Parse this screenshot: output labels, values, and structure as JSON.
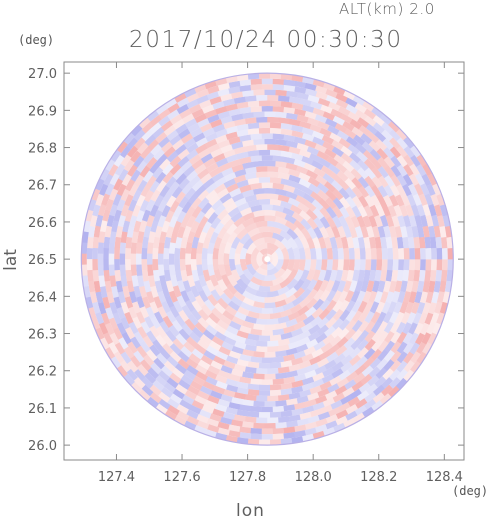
{
  "header": {
    "altitude": "ALT(km) 2.0",
    "datetime": "2017/10/24 00:30:30"
  },
  "chart_data": {
    "type": "heatmap",
    "title": "2017/10/24 00:30:30",
    "subtitle": "ALT(km) 2.0",
    "xlabel": "lon",
    "ylabel": "lat",
    "x_unit": "(deg)",
    "y_unit": "(deg)",
    "xlim": [
      127.24,
      128.46
    ],
    "ylim": [
      25.96,
      27.03
    ],
    "x_ticks": [
      "127.4",
      "127.6",
      "127.8",
      "128.0",
      "128.2",
      "128.4"
    ],
    "x_tick_values": [
      127.4,
      127.6,
      127.8,
      128.0,
      128.2,
      128.4
    ],
    "y_ticks": [
      "26.0",
      "26.1",
      "26.2",
      "26.3",
      "26.4",
      "26.5",
      "26.6",
      "26.7",
      "26.8",
      "26.9",
      "27.0"
    ],
    "y_tick_values": [
      26.0,
      26.1,
      26.2,
      26.3,
      26.4,
      26.5,
      26.6,
      26.7,
      26.8,
      26.9,
      27.0
    ],
    "radar_center": {
      "lon": 127.86,
      "lat": 26.5
    },
    "radar_radius_deg_lat": 0.5,
    "colors": {
      "positive": "#f08a8a",
      "negative": "#8f8fe8",
      "neutral": "#ffffff",
      "frame": "#8a8a8a"
    },
    "grid": false,
    "legend": "none"
  }
}
